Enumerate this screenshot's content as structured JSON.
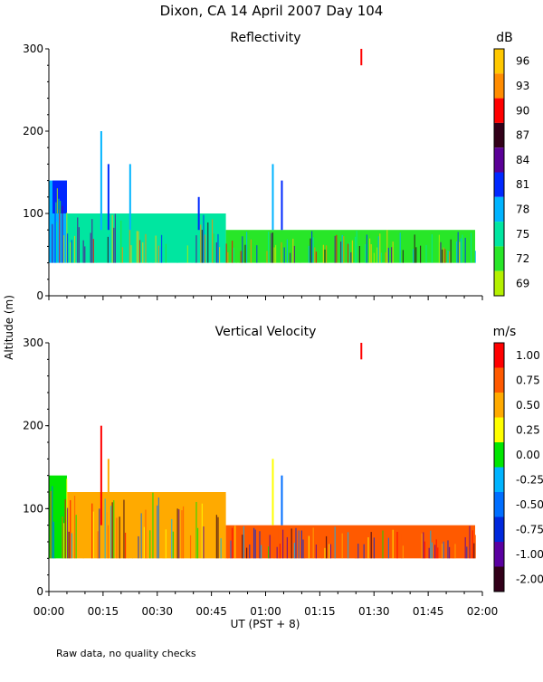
{
  "figure": {
    "title": "Dixon, CA 14 April 2007  Day 104",
    "ylabel": "Altitude (m)",
    "xlabel": "UT  (PST + 8)",
    "note": "Raw data, no quality checks",
    "xticks": [
      "00:00",
      "00:15",
      "00:30",
      "00:45",
      "01:00",
      "01:15",
      "01:30",
      "01:45",
      "02:00"
    ]
  },
  "chart_data": [
    {
      "type": "heatmap",
      "title": "Reflectivity",
      "ylabel": "Altitude (m)",
      "xlabel": "UT  (PST + 8)",
      "x_minutes_range": [
        0,
        120
      ],
      "ylim": [
        0,
        300
      ],
      "yticks": [
        0,
        100,
        200,
        300
      ],
      "colorbar": {
        "unit": "dB",
        "labels": [
          "96",
          "93",
          "90",
          "87",
          "84",
          "81",
          "78",
          "75",
          "72",
          "69"
        ],
        "colors": [
          "#ffc800",
          "#ff8c00",
          "#ff0000",
          "#320019",
          "#5a0096",
          "#0028ff",
          "#00b4ff",
          "#00e6a0",
          "#28e628",
          "#b4f000"
        ]
      },
      "layers": [
        {
          "x_start": 0,
          "x_end": 5,
          "y_min": 40,
          "y_max": 140,
          "value": 78
        },
        {
          "x_start": 5,
          "x_end": 49,
          "y_min": 40,
          "y_max": 100,
          "value": 75
        },
        {
          "x_start": 49,
          "x_end": 118,
          "y_min": 40,
          "y_max": 80,
          "value": 72
        },
        {
          "x_start": 1,
          "x_end": 5,
          "y_min": 100,
          "y_max": 140,
          "value": 81
        }
      ],
      "spikes": [
        {
          "x": 14.5,
          "top": 200,
          "value": 78
        },
        {
          "x": 16.5,
          "top": 160,
          "value": 81
        },
        {
          "x": 22.5,
          "top": 160,
          "value": 78
        },
        {
          "x": 41.5,
          "top": 120,
          "value": 81
        },
        {
          "x": 62.0,
          "top": 160,
          "value": 78
        },
        {
          "x": 64.5,
          "top": 140,
          "value": 81
        },
        {
          "x": 86.5,
          "y_min": 280,
          "top": 300,
          "value": 90
        }
      ]
    },
    {
      "type": "heatmap",
      "title": "Vertical Velocity",
      "ylabel": "Altitude (m)",
      "xlabel": "UT  (PST + 8)",
      "x_minutes_range": [
        0,
        120
      ],
      "ylim": [
        0,
        300
      ],
      "yticks": [
        0,
        100,
        200,
        300
      ],
      "colorbar": {
        "unit": "m/s",
        "labels": [
          "1.00",
          "0.75",
          "0.50",
          "0.25",
          "0.00",
          "-0.25",
          "-0.50",
          "-0.75",
          "-1.00",
          "-2.00"
        ],
        "colors": [
          "#ff0000",
          "#ff5a00",
          "#ffaa00",
          "#ffff00",
          "#00e600",
          "#00b4ff",
          "#006eff",
          "#0028dc",
          "#5a00a0",
          "#320019"
        ]
      },
      "layers": [
        {
          "x_start": 0,
          "x_end": 5,
          "y_min": 40,
          "y_max": 140,
          "value": 0.0
        },
        {
          "x_start": 5,
          "x_end": 49,
          "y_min": 40,
          "y_max": 120,
          "value": 0.5
        },
        {
          "x_start": 49,
          "x_end": 118,
          "y_min": 40,
          "y_max": 80,
          "value": 0.75
        }
      ],
      "spikes": [
        {
          "x": 14.5,
          "top": 200,
          "value": 1.0
        },
        {
          "x": 16.5,
          "top": 160,
          "value": 0.5
        },
        {
          "x": 62.0,
          "top": 160,
          "value": 0.25
        },
        {
          "x": 64.5,
          "top": 140,
          "value": -0.5
        },
        {
          "x": 86.5,
          "y_min": 280,
          "top": 300,
          "value": 1.0
        }
      ]
    }
  ]
}
